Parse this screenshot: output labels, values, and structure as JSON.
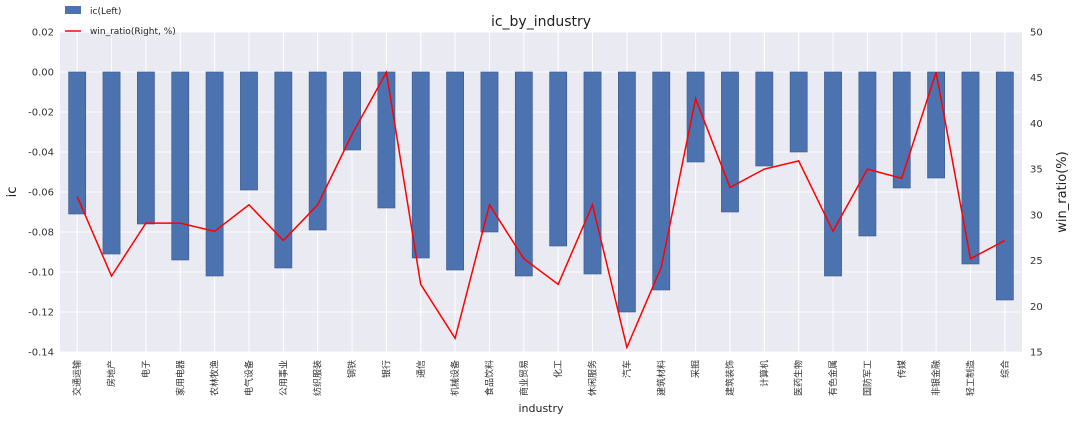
{
  "chart_data": {
    "type": "bar+line",
    "title": "ic_by_industry",
    "xlabel": "industry",
    "ylabel_left": "ic",
    "ylabel_right": "win_ratio(%)",
    "ylim_left": [
      -0.14,
      0.02
    ],
    "ylim_right": [
      15,
      50
    ],
    "yticks_left": [
      "0.02",
      "0.00",
      "-0.02",
      "-0.04",
      "-0.06",
      "-0.08",
      "-0.10",
      "-0.12",
      "-0.14"
    ],
    "yticks_right": [
      "50",
      "45",
      "40",
      "35",
      "30",
      "25",
      "20",
      "15"
    ],
    "grid": true,
    "legend_position": "top-left",
    "categories": [
      "交通运输",
      "房地产",
      "电子",
      "家用电器",
      "农林牧渔",
      "电气设备",
      "公用事业",
      "纺织服装",
      "钢铁",
      "银行",
      "通信",
      "机械设备",
      "食品饮料",
      "商业贸易",
      "化工",
      "休闲服务",
      "汽车",
      "建筑材料",
      "采掘",
      "建筑装饰",
      "计算机",
      "医药生物",
      "有色金属",
      "国防军工",
      "传媒",
      "非银金融",
      "轻工制造",
      "综合"
    ],
    "series": [
      {
        "name": "ic(Left)",
        "kind": "bar",
        "axis": "left",
        "color": "#4c72b0",
        "values": [
          -0.071,
          -0.091,
          -0.076,
          -0.094,
          -0.102,
          -0.059,
          -0.098,
          -0.079,
          -0.039,
          -0.068,
          -0.093,
          -0.099,
          -0.08,
          -0.102,
          -0.087,
          -0.101,
          -0.12,
          -0.109,
          -0.045,
          -0.07,
          -0.047,
          -0.04,
          -0.102,
          -0.082,
          -0.058,
          -0.053,
          -0.096,
          -0.114
        ]
      },
      {
        "name": "win_ratio(Right, %)",
        "kind": "line",
        "axis": "right",
        "color": "#ff0000",
        "values": [
          32.0,
          23.3,
          29.1,
          29.1,
          28.2,
          31.1,
          27.2,
          31.1,
          38.8,
          45.6,
          22.4,
          16.5,
          31.1,
          25.2,
          22.4,
          31.1,
          15.5,
          24.3,
          42.7,
          33.0,
          35.0,
          35.9,
          28.2,
          35.0,
          34.0,
          45.6,
          25.2,
          27.2
        ]
      }
    ]
  }
}
